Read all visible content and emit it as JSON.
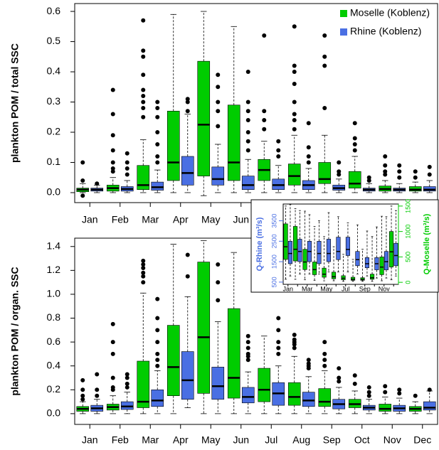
{
  "chart_data": [
    {
      "type": "box",
      "ylabel": "plankton POM / total SSC",
      "legend": "topright",
      "categories": [
        "Jan",
        "Feb",
        "Mar",
        "Apr",
        "May",
        "Jun",
        "Jul",
        "Aug",
        "Sep",
        "Oct",
        "Nov",
        "Dec"
      ],
      "ylim": [
        -0.033,
        0.626
      ],
      "yticks": [
        {
          "value": 0,
          "label": "0.0"
        },
        0.1,
        0.2,
        0.3,
        0.4,
        0.5,
        0.6
      ],
      "series": [
        {
          "name": "Moselle (Koblenz)",
          "color": "#00cc00",
          "values": [
            {
              "min": 0,
              "q1": 0.003,
              "median": 0.01,
              "q3": 0.015,
              "max": 0.03,
              "outliers": [
                0.1,
                0.04,
                -0.01
              ]
            },
            {
              "min": 0,
              "q1": 0.005,
              "median": 0.015,
              "q3": 0.025,
              "max": 0.05,
              "outliers": [
                0.34,
                0.26,
                0.19,
                0.14,
                0.1,
                0.08,
                0.07
              ]
            },
            {
              "min": 0,
              "q1": 0.01,
              "median": 0.025,
              "q3": 0.09,
              "max": 0.175,
              "outliers": [
                0.57,
                0.47,
                0.45,
                0.39,
                0.34,
                0.32,
                0.3,
                0.28,
                0.25
              ]
            },
            {
              "min": 0,
              "q1": 0.04,
              "median": 0.1,
              "q3": 0.27,
              "max": 0.59,
              "outliers": []
            },
            {
              "min": -0.01,
              "q1": 0.055,
              "median": 0.225,
              "q3": 0.435,
              "max": 0.6,
              "outliers": []
            },
            {
              "min": 0,
              "q1": 0.04,
              "median": 0.1,
              "q3": 0.29,
              "max": 0.55,
              "outliers": []
            },
            {
              "min": 0,
              "q1": 0.04,
              "median": 0.075,
              "q3": 0.11,
              "max": 0.17,
              "outliers": [
                0.52,
                0.27,
                0.24,
                0.21
              ]
            },
            {
              "min": 0,
              "q1": 0.025,
              "median": 0.055,
              "q3": 0.095,
              "max": 0.19,
              "outliers": [
                0.55,
                0.42,
                0.4,
                0.36,
                0.3,
                0.26,
                0.24,
                0.21
              ]
            },
            {
              "min": 0,
              "q1": 0.03,
              "median": 0.045,
              "q3": 0.1,
              "max": 0.19,
              "outliers": [
                0.52,
                0.45,
                0.42,
                0.28
              ]
            },
            {
              "min": 0,
              "q1": 0.015,
              "median": 0.03,
              "q3": 0.07,
              "max": 0.12,
              "outliers": [
                0.23,
                0.18,
                0.16,
                0.14
              ]
            },
            {
              "min": 0,
              "q1": 0.005,
              "median": 0.012,
              "q3": 0.022,
              "max": 0.04,
              "outliers": [
                0.12,
                0.09,
                0.07,
                0.06
              ]
            },
            {
              "min": 0,
              "q1": 0.005,
              "median": 0.01,
              "q3": 0.02,
              "max": 0.035,
              "outliers": [
                0.07,
                0.05
              ]
            }
          ]
        },
        {
          "name": "Rhine (Koblenz)",
          "color": "#4a6fe3",
          "values": [
            {
              "min": 0,
              "q1": 0.005,
              "median": 0.01,
              "q3": 0.015,
              "max": 0.025,
              "outliers": [
                0.03
              ]
            },
            {
              "min": 0,
              "q1": 0.005,
              "median": 0.012,
              "q3": 0.02,
              "max": 0.04,
              "outliers": [
                0.13,
                0.1,
                0.08,
                0.06
              ]
            },
            {
              "min": 0,
              "q1": 0.008,
              "median": 0.018,
              "q3": 0.035,
              "max": 0.075,
              "outliers": [
                0.3,
                0.28,
                0.25,
                0.2,
                0.16,
                0.12,
                0.1
              ]
            },
            {
              "min": 0,
              "q1": 0.025,
              "median": 0.065,
              "q3": 0.12,
              "max": 0.26,
              "outliers": [
                0.31,
                0.3,
                0.27
              ]
            },
            {
              "min": 0,
              "q1": 0.025,
              "median": 0.045,
              "q3": 0.085,
              "max": 0.16,
              "outliers": [
                0.39,
                0.35,
                0.3,
                0.27,
                0.22
              ]
            },
            {
              "min": 0,
              "q1": 0.01,
              "median": 0.025,
              "q3": 0.055,
              "max": 0.11,
              "outliers": [
                0.4,
                0.3,
                0.27,
                0.24,
                0.2,
                0.17,
                0.14
              ]
            },
            {
              "min": 0,
              "q1": 0.01,
              "median": 0.025,
              "q3": 0.045,
              "max": 0.09,
              "outliers": [
                0.17,
                0.14,
                0.12
              ]
            },
            {
              "min": 0,
              "q1": 0.01,
              "median": 0.025,
              "q3": 0.04,
              "max": 0.08,
              "outliers": [
                0.23,
                0.15,
                0.12,
                0.1
              ]
            },
            {
              "min": 0,
              "q1": 0.008,
              "median": 0.015,
              "q3": 0.025,
              "max": 0.045,
              "outliers": [
                0.1,
                0.07,
                0.06
              ]
            },
            {
              "min": 0,
              "q1": 0.005,
              "median": 0.01,
              "q3": 0.015,
              "max": 0.03,
              "outliers": [
                0.05,
                0.04
              ]
            },
            {
              "min": 0,
              "q1": 0.005,
              "median": 0.01,
              "q3": 0.015,
              "max": 0.03,
              "outliers": [
                0.09,
                0.07,
                0.05
              ]
            },
            {
              "min": 0,
              "q1": 0.005,
              "median": 0.01,
              "q3": 0.02,
              "max": 0.04,
              "outliers": [
                0.085,
                0.06
              ]
            }
          ]
        }
      ]
    },
    {
      "type": "box",
      "ylabel": "plankton POM / organ. SSC",
      "categories": [
        "Jan",
        "Feb",
        "Mar",
        "Apr",
        "May",
        "Jun",
        "Jul",
        "Aug",
        "Sep",
        "Oct",
        "Nov",
        "Dec"
      ],
      "ylim": [
        -0.09,
        1.47
      ],
      "yticks": [
        {
          "value": 0,
          "label": "0.0"
        },
        0.2,
        0.4,
        0.6,
        0.8,
        {
          "value": 1,
          "label": "1.0"
        },
        1.2,
        1.4
      ],
      "series": [
        {
          "color": "#00cc00",
          "values": [
            {
              "min": 0,
              "q1": 0.02,
              "median": 0.04,
              "q3": 0.06,
              "max": 0.1,
              "outliers": [
                0.28,
                0.2,
                0.15,
                0.12
              ]
            },
            {
              "min": 0,
              "q1": 0.03,
              "median": 0.055,
              "q3": 0.08,
              "max": 0.15,
              "outliers": [
                0.75,
                0.6,
                0.5,
                0.3,
                0.22,
                0.2
              ]
            },
            {
              "min": 0,
              "q1": 0.05,
              "median": 0.1,
              "q3": 0.44,
              "max": 1.01,
              "outliers": [
                1.28,
                1.25,
                1.22,
                1.18,
                1.15,
                1.1
              ]
            },
            {
              "min": 0,
              "q1": 0.15,
              "median": 0.39,
              "q3": 0.74,
              "max": 1.42,
              "outliers": []
            },
            {
              "min": 0,
              "q1": 0.17,
              "median": 0.64,
              "q3": 1.27,
              "max": 1.45,
              "outliers": []
            },
            {
              "min": 0,
              "q1": 0.13,
              "median": 0.3,
              "q3": 0.88,
              "max": 1.35,
              "outliers": []
            },
            {
              "min": 0,
              "q1": 0.1,
              "median": 0.2,
              "q3": 0.38,
              "max": 0.65,
              "outliers": []
            },
            {
              "min": 0,
              "q1": 0.07,
              "median": 0.14,
              "q3": 0.26,
              "max": 0.48,
              "outliers": [
                0.66,
                0.62,
                0.6,
                0.58,
                0.55
              ]
            },
            {
              "min": 0,
              "q1": 0.06,
              "median": 0.1,
              "q3": 0.21,
              "max": 0.36,
              "outliers": [
                0.6,
                0.5,
                0.45,
                0.4
              ]
            },
            {
              "min": 0,
              "q1": 0.05,
              "median": 0.08,
              "q3": 0.12,
              "max": 0.19,
              "outliers": [
                0.32,
                0.25
              ]
            },
            {
              "min": 0,
              "q1": 0.02,
              "median": 0.04,
              "q3": 0.08,
              "max": 0.14,
              "outliers": [
                0.23,
                0.18
              ]
            },
            {
              "min": 0,
              "q1": 0.02,
              "median": 0.04,
              "q3": 0.06,
              "max": 0.1,
              "outliers": [
                0.15
              ]
            }
          ]
        },
        {
          "color": "#4a6fe3",
          "values": [
            {
              "min": 0,
              "q1": 0.02,
              "median": 0.045,
              "q3": 0.07,
              "max": 0.12,
              "outliers": [
                0.33,
                0.2,
                0.15
              ]
            },
            {
              "min": 0,
              "q1": 0.035,
              "median": 0.06,
              "q3": 0.1,
              "max": 0.18,
              "outliers": [
                0.33,
                0.3,
                0.25,
                0.22
              ]
            },
            {
              "min": 0,
              "q1": 0.06,
              "median": 0.11,
              "q3": 0.2,
              "max": 0.36,
              "outliers": [
                0.96,
                0.8,
                0.7,
                0.6,
                0.5,
                0.45,
                0.4
              ]
            },
            {
              "min": 0.05,
              "q1": 0.12,
              "median": 0.28,
              "q3": 0.52,
              "max": 0.98,
              "outliers": [
                1.33,
                1.15
              ]
            },
            {
              "min": 0,
              "q1": 0.12,
              "median": 0.23,
              "q3": 0.39,
              "max": 0.77,
              "outliers": [
                1.25,
                1.1,
                0.95
              ]
            },
            {
              "min": 0,
              "q1": 0.09,
              "median": 0.14,
              "q3": 0.22,
              "max": 0.35,
              "outliers": [
                0.65,
                0.6,
                0.55,
                0.5,
                0.48,
                0.45
              ]
            },
            {
              "min": 0,
              "q1": 0.07,
              "median": 0.17,
              "q3": 0.26,
              "max": 0.4,
              "outliers": [
                0.8,
                0.7,
                0.6,
                0.55,
                0.5
              ]
            },
            {
              "min": 0,
              "q1": 0.06,
              "median": 0.11,
              "q3": 0.18,
              "max": 0.31,
              "outliers": [
                0.45,
                0.42,
                0.4,
                0.38
              ]
            },
            {
              "min": 0,
              "q1": 0.04,
              "median": 0.08,
              "q3": 0.12,
              "max": 0.22,
              "outliers": [
                0.38,
                0.3,
                0.27
              ]
            },
            {
              "min": 0,
              "q1": 0.03,
              "median": 0.05,
              "q3": 0.07,
              "max": 0.12,
              "outliers": [
                0.22,
                0.18,
                0.15
              ]
            },
            {
              "min": 0,
              "q1": 0.02,
              "median": 0.045,
              "q3": 0.07,
              "max": 0.13,
              "outliers": [
                0.2,
                0.17
              ]
            },
            {
              "min": 0,
              "q1": 0.03,
              "median": 0.05,
              "q3": 0.1,
              "max": 0.19,
              "outliers": [
                0.2
              ]
            }
          ]
        }
      ]
    },
    {
      "type": "box",
      "ylabel": "Q-Rhine (m³/s)",
      "y2label": "Q-Moselle (m³/s)",
      "categories": [
        "Jan",
        null,
        "Mar",
        null,
        "May",
        null,
        "Jul",
        null,
        "Sep",
        null,
        "Nov",
        null
      ],
      "ylim": [
        390,
        4320
      ],
      "yticks": [
        500,
        1500,
        2500,
        3500
      ],
      "y2lim": [
        -40,
        1540
      ],
      "y2ticks": [
        0,
        500,
        1000,
        1500
      ],
      "series": [
        {
          "color": "#00cc00",
          "axis": "y2",
          "values": [
            {
              "min": 60,
              "q1": 450,
              "median": 700,
              "q3": 1150,
              "max": 1500
            },
            {
              "min": 60,
              "q1": 420,
              "median": 650,
              "q3": 1100,
              "max": 1450
            },
            {
              "min": 50,
              "q1": 250,
              "median": 400,
              "q3": 650,
              "max": 1400
            },
            {
              "min": 40,
              "q1": 150,
              "median": 250,
              "q3": 400,
              "max": 1100
            },
            {
              "min": 30,
              "q1": 100,
              "median": 160,
              "q3": 280,
              "max": 900
            },
            {
              "min": 30,
              "q1": 70,
              "median": 110,
              "q3": 200,
              "max": 700
            },
            {
              "min": 20,
              "q1": 50,
              "median": 80,
              "q3": 130,
              "max": 550
            },
            {
              "min": 20,
              "q1": 40,
              "median": 60,
              "q3": 100,
              "max": 450
            },
            {
              "min": 20,
              "q1": 40,
              "median": 60,
              "q3": 90,
              "max": 650
            },
            {
              "min": 20,
              "q1": 60,
              "median": 90,
              "q3": 160,
              "max": 900
            },
            {
              "min": 30,
              "q1": 150,
              "median": 300,
              "q3": 500,
              "max": 1300
            },
            {
              "min": 50,
              "q1": 300,
              "median": 600,
              "q3": 1000,
              "max": 1500
            }
          ]
        },
        {
          "color": "#4a6fe3",
          "axis": "y",
          "values": [
            {
              "min": 800,
              "q1": 1400,
              "median": 1900,
              "q3": 2500,
              "max": 4300
            },
            {
              "min": 900,
              "q1": 1500,
              "median": 2000,
              "q3": 2600,
              "max": 4000
            },
            {
              "min": 900,
              "q1": 1500,
              "median": 2000,
              "q3": 2500,
              "max": 3800
            },
            {
              "min": 900,
              "q1": 1400,
              "median": 1900,
              "q3": 2500,
              "max": 3500
            },
            {
              "min": 1000,
              "q1": 1500,
              "median": 1900,
              "q3": 2600,
              "max": 3900
            },
            {
              "min": 1000,
              "q1": 1600,
              "median": 2000,
              "q3": 2700,
              "max": 3700
            },
            {
              "min": 1000,
              "q1": 1800,
              "median": 2100,
              "q3": 2700,
              "max": 3400
            },
            {
              "min": 900,
              "q1": 1300,
              "median": 1600,
              "q3": 2000,
              "max": 3300
            },
            {
              "min": 800,
              "q1": 1200,
              "median": 1400,
              "q3": 1700,
              "max": 3000
            },
            {
              "min": 700,
              "q1": 1100,
              "median": 1400,
              "q3": 1700,
              "max": 3200
            },
            {
              "min": 700,
              "q1": 1100,
              "median": 1500,
              "q3": 2000,
              "max": 3700
            },
            {
              "min": 800,
              "q1": 1300,
              "median": 1800,
              "q3": 2400,
              "max": 4000
            }
          ]
        }
      ]
    }
  ]
}
